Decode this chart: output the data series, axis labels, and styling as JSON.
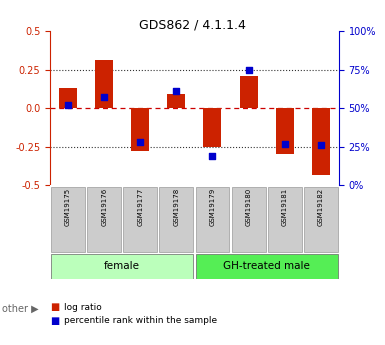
{
  "title": "GDS862 / 4.1.1.4",
  "samples": [
    "GSM19175",
    "GSM19176",
    "GSM19177",
    "GSM19178",
    "GSM19179",
    "GSM19180",
    "GSM19181",
    "GSM19182"
  ],
  "log_ratio": [
    0.13,
    0.31,
    -0.28,
    0.09,
    -0.25,
    0.21,
    -0.3,
    -0.43
  ],
  "percentile_rank": [
    52,
    57,
    28,
    61,
    19,
    75,
    27,
    26
  ],
  "groups": [
    {
      "label": "female",
      "start": 0,
      "end": 3,
      "color": "#bbffbb"
    },
    {
      "label": "GH-treated male",
      "start": 4,
      "end": 7,
      "color": "#55ee55"
    }
  ],
  "ylim_left": [
    -0.5,
    0.5
  ],
  "ylim_right": [
    0,
    100
  ],
  "yticks_left": [
    -0.5,
    -0.25,
    0.0,
    0.25,
    0.5
  ],
  "yticks_right": [
    0,
    25,
    50,
    75,
    100
  ],
  "bar_color": "#cc2200",
  "dot_color": "#0000cc",
  "hline_color": "#cc0000",
  "grid_color": "#333333",
  "bg_color": "#ffffff",
  "sample_bg": "#cccccc",
  "bar_width": 0.5,
  "left_color": "#cc2200",
  "right_color": "#0000cc"
}
